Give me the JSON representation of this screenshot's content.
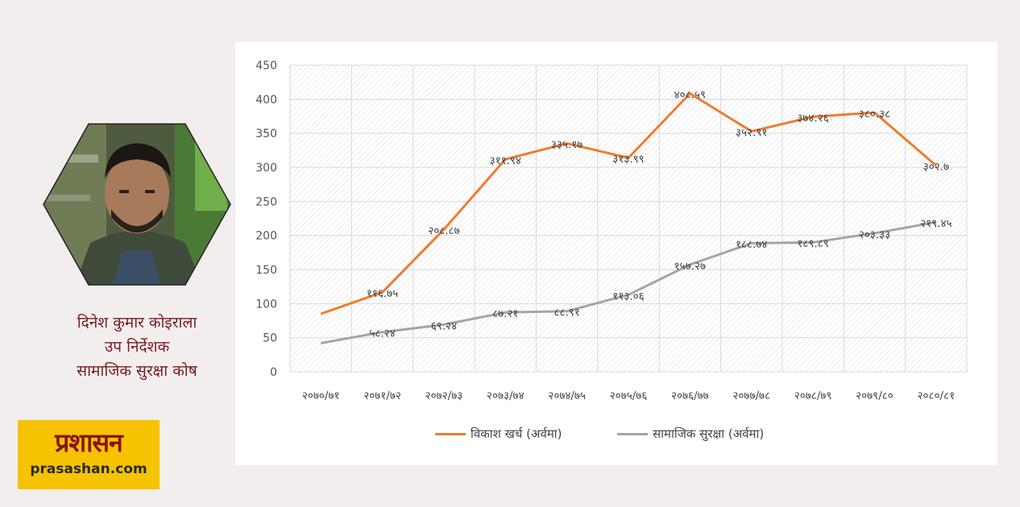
{
  "author": {
    "name": "दिनेश कुमार कोइराला",
    "designation": "उप निर्देशक",
    "organization": "सामाजिक सुरक्षा कोष"
  },
  "logo": {
    "text": "प्रशासन",
    "domain": "prasashan.com"
  },
  "colors": {
    "orange": "#ed7d31",
    "gray": "#a5a5a5",
    "logo_bg": "#f5c300",
    "author_text": "#7b1a1f"
  },
  "chart_data": {
    "type": "line",
    "categories": [
      "२०७०/७१",
      "२०७१/७२",
      "२०७२/७३",
      "२०७३/७४",
      "२०७४/७५",
      "२०७५/७६",
      "२०७६/७७",
      "२०७७/७८",
      "२०७८/७९",
      "२०७९/८०",
      "२०८०/८१"
    ],
    "ylim": [
      0,
      450
    ],
    "yticks": [
      0,
      50,
      100,
      150,
      200,
      250,
      300,
      350,
      400,
      450
    ],
    "grid": true,
    "legend_position": "bottom",
    "series": [
      {
        "name": "विकाश खर्च (अर्वमा)",
        "color": "#ed7d31",
        "values": [
          85,
          116.75,
          208.87,
          311.94,
          335.17,
          313.99,
          408.59,
          352.91,
          374.26,
          380.38,
          302.7
        ],
        "labels": [
          "",
          "११६.७५",
          "२०८.८७",
          "३११.९४",
          "३३५.१७",
          "३१३.९९",
          "४०८.५९",
          "३५२.९१",
          "३७४.२६",
          "३८०.३८",
          "३०२.७"
        ]
      },
      {
        "name": "सामाजिक सुरक्षा (अर्वमा)",
        "color": "#a5a5a5",
        "values": [
          42,
          58.24,
          69.24,
          87.21,
          88.91,
          113.06,
          157.27,
          188.74,
          189.89,
          203.33,
          219.45
        ],
        "labels": [
          "",
          "५८.२४",
          "६९.२४",
          "८७.२१",
          "८८.९१",
          "११३.०६",
          "१५७.२७",
          "१८८.७४",
          "१८९.८९",
          "२०३.३३",
          "२१९.४५"
        ]
      }
    ]
  }
}
